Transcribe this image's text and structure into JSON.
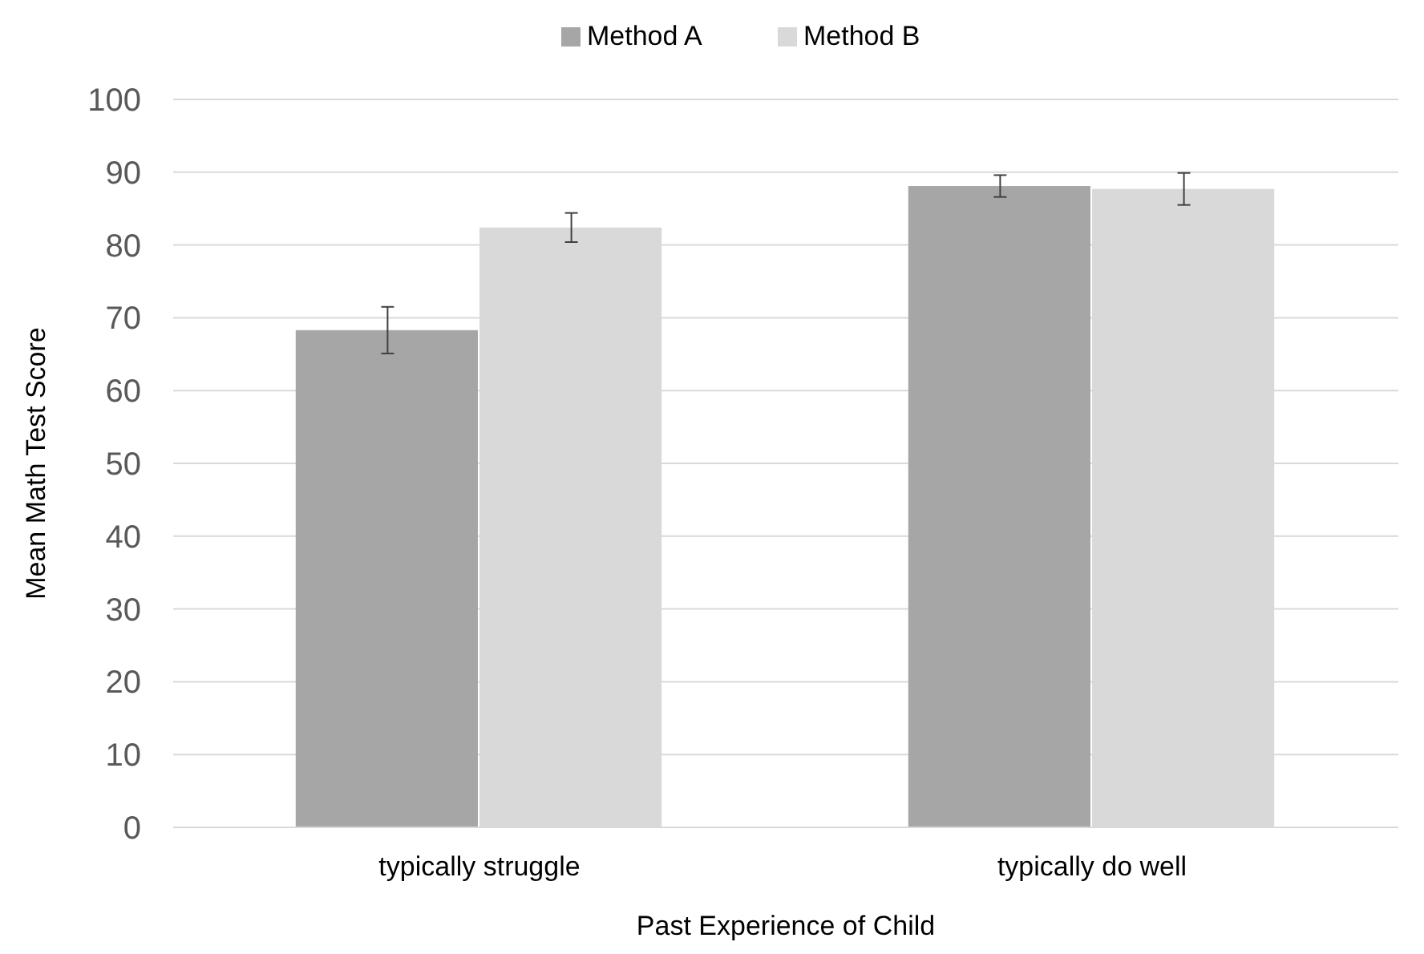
{
  "chart_data": {
    "type": "bar",
    "categories": [
      "typically struggle",
      "typically do well"
    ],
    "series": [
      {
        "name": "Method A",
        "color": "#a6a6a6",
        "values": [
          68.3,
          88.1
        ],
        "errors": [
          3.2,
          1.5
        ]
      },
      {
        "name": "Method B",
        "color": "#d9d9d9",
        "values": [
          82.4,
          87.7
        ],
        "errors": [
          2,
          2.2
        ]
      }
    ],
    "xlabel": "Past Experience of Child",
    "ylabel": "Mean Math Test Score",
    "ylim": [
      0,
      100
    ],
    "yticks": [
      0,
      10,
      20,
      30,
      40,
      50,
      60,
      70,
      80,
      90,
      100
    ],
    "grid": "y",
    "legend": "top"
  }
}
